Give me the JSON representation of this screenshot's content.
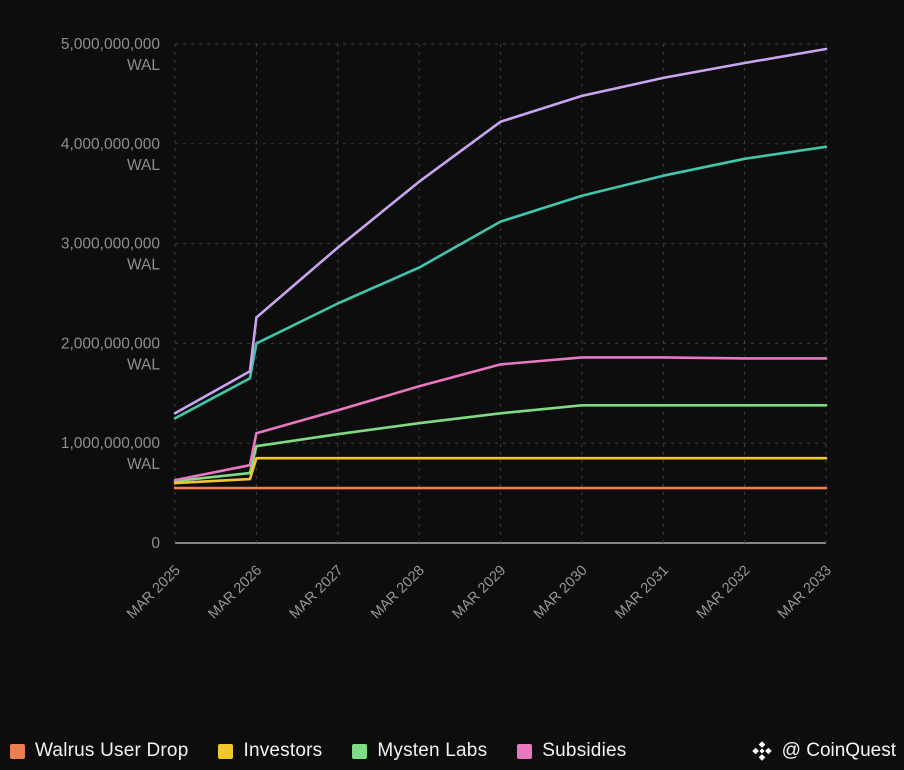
{
  "chart_data": {
    "type": "line",
    "title": "",
    "unit": "WAL",
    "x_labels": [
      "MAR 2025",
      "MAR 2026",
      "MAR 2027",
      "MAR 2028",
      "MAR 2029",
      "MAR 2030",
      "MAR 2031",
      "MAR 2032",
      "MAR 2033"
    ],
    "x_values": [
      2025,
      2025.92,
      2026,
      2027,
      2028,
      2029,
      2030,
      2031,
      2032,
      2033
    ],
    "xlim": [
      2025,
      2033
    ],
    "ylim": [
      0,
      5000000000
    ],
    "y_ticks": [
      0,
      1000000000,
      2000000000,
      3000000000,
      4000000000,
      5000000000
    ],
    "y_tick_labels": [
      "0",
      "1,000,000,000",
      "2,000,000,000",
      "3,000,000,000",
      "4,000,000,000",
      "5,000,000,000"
    ],
    "grid": "dashed",
    "legend_position": "bottom-left",
    "series": [
      {
        "name": "Walrus User Drop",
        "color": "#EC7E4F",
        "in_legend": true,
        "values": [
          550000000,
          550000000,
          550000000,
          550000000,
          550000000,
          550000000,
          550000000,
          550000000,
          550000000,
          550000000
        ]
      },
      {
        "name": "Investors",
        "color": "#EFC72F",
        "in_legend": true,
        "values": [
          600000000,
          640000000,
          850000000,
          850000000,
          850000000,
          850000000,
          850000000,
          850000000,
          850000000,
          850000000
        ]
      },
      {
        "name": "Mysten Labs",
        "color": "#7FDB85",
        "in_legend": true,
        "values": [
          620000000,
          700000000,
          970000000,
          1090000000,
          1200000000,
          1300000000,
          1380000000,
          1380000000,
          1380000000,
          1380000000
        ]
      },
      {
        "name": "Subsidies",
        "color": "#EA77C2",
        "in_legend": true,
        "values": [
          630000000,
          780000000,
          1100000000,
          1330000000,
          1570000000,
          1790000000,
          1860000000,
          1860000000,
          1850000000,
          1850000000
        ]
      },
      {
        "name": "unlabeled-teal",
        "color": "#41C6AD",
        "in_legend": false,
        "values": [
          1250000000,
          1650000000,
          2000000000,
          2400000000,
          2760000000,
          3220000000,
          3480000000,
          3680000000,
          3850000000,
          3970000000
        ]
      },
      {
        "name": "unlabeled-purple",
        "color": "#C9A4F0",
        "in_legend": false,
        "values": [
          1300000000,
          1720000000,
          2260000000,
          2960000000,
          3620000000,
          4220000000,
          4480000000,
          4660000000,
          4810000000,
          4950000000
        ]
      }
    ]
  },
  "watermark": {
    "handle": "@ CoinQuest"
  }
}
